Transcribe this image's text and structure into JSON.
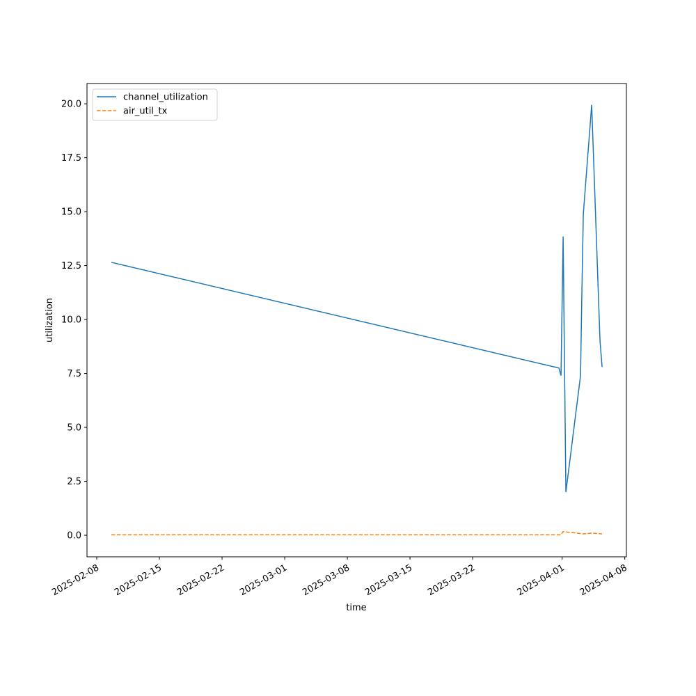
{
  "chart_data": {
    "type": "line",
    "x_label": "time",
    "y_label": "utilization",
    "x": [
      "2025-02-09T15:12",
      "2025-03-31T15:25",
      "2025-03-31T21:00",
      "2025-04-01T02:40",
      "2025-04-01T10:05",
      "2025-04-03T01:20",
      "2025-04-03T05:00",
      "2025-04-03T08:50",
      "2025-04-04T07:15",
      "2025-04-05T05:35",
      "2025-04-05T11:10"
    ],
    "series": [
      {
        "name": "channel_utilization",
        "color": "#1f77b4",
        "linestyle": "solid",
        "values": [
          12.65,
          7.75,
          7.4,
          13.85,
          2.0,
          7.4,
          11.3,
          14.9,
          19.95,
          9.0,
          7.8
        ]
      },
      {
        "name": "air_util_tx",
        "color": "#ff7f0e",
        "linestyle": "dashed",
        "values": [
          0.02,
          0.02,
          0.02,
          0.17,
          0.15,
          0.08,
          0.07,
          0.06,
          0.1,
          0.07,
          0.06
        ]
      }
    ],
    "xlim": [
      "2025-02-06T21:50",
      "2025-04-08T04:20"
    ],
    "xticks": [
      "2025-02-08",
      "2025-02-15",
      "2025-02-22",
      "2025-03-01",
      "2025-03-08",
      "2025-03-15",
      "2025-03-22",
      "2025-04-01",
      "2025-04-08"
    ],
    "ylim": [
      -1,
      20.94
    ],
    "yticks": [
      {
        "value": 0,
        "label": "0.0"
      },
      2.5,
      {
        "value": 5,
        "label": "5.0"
      },
      7.5,
      {
        "value": 10,
        "label": "10.0"
      },
      12.5,
      {
        "value": 15,
        "label": "15.0"
      },
      17.5,
      {
        "value": 20,
        "label": "20.0"
      }
    ],
    "legend": "upper left",
    "grid": false
  }
}
